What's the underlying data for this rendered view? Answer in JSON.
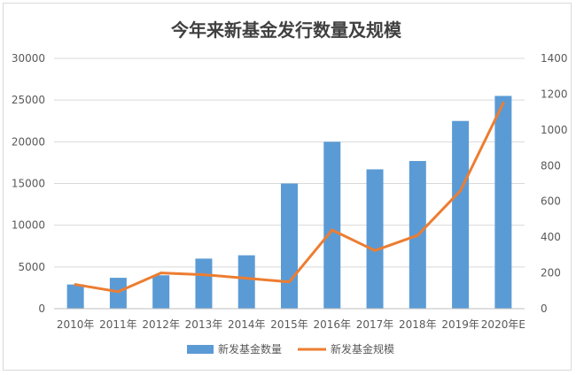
{
  "chart_data": {
    "type": "bar+line",
    "title": "今年来新基金发行数量及规模",
    "categories": [
      "2010年",
      "2011年",
      "2012年",
      "2013年",
      "2014年",
      "2015年",
      "2016年",
      "2017年",
      "2018年",
      "2019年",
      "2020年E"
    ],
    "series": [
      {
        "name": "新发基金数量",
        "type": "bar",
        "axis": "left",
        "color": "#5b9bd5",
        "values": [
          2900,
          3700,
          4000,
          6000,
          6400,
          15000,
          20000,
          16700,
          17700,
          22500,
          25500
        ]
      },
      {
        "name": "新发基金规模",
        "type": "line",
        "axis": "right",
        "color": "#ed7d31",
        "values": [
          135,
          95,
          200,
          190,
          170,
          150,
          440,
          325,
          410,
          660,
          1150
        ]
      }
    ],
    "y_left": {
      "min": 0,
      "max": 30000,
      "ticks": [
        "0",
        "5000",
        "10000",
        "15000",
        "20000",
        "25000",
        "30000"
      ]
    },
    "y_right": {
      "min": 0,
      "max": 1400,
      "ticks": [
        "0",
        "200",
        "400",
        "600",
        "800",
        "1000",
        "1200",
        "1400"
      ]
    },
    "grid": true,
    "legend_position": "bottom"
  }
}
